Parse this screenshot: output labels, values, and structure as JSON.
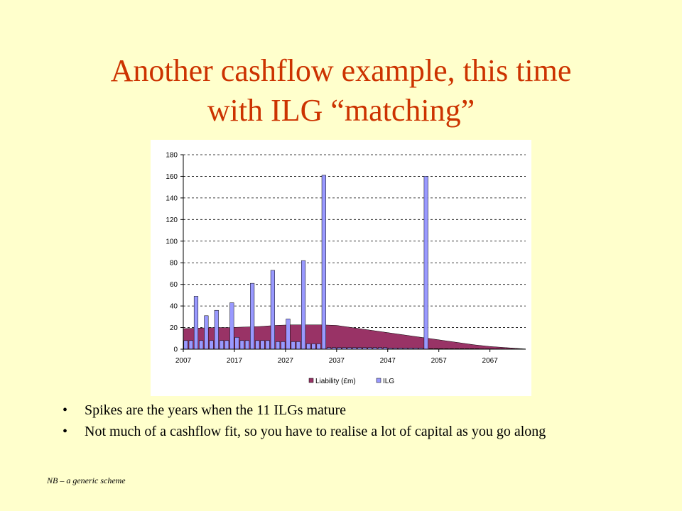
{
  "slide": {
    "title_line1": "Another cashflow example, this time",
    "title_line2": "with ILG “matching”",
    "bullets": [
      "Spikes are the years when the 11 ILGs mature",
      "Not much of a cashflow fit, so you have to realise a lot of capital as you go along"
    ],
    "footnote": "NB – a generic scheme"
  },
  "chart_data": {
    "type": "bar",
    "title": "",
    "xlabel": "",
    "ylabel": "",
    "ylim": [
      0,
      180
    ],
    "yticks": [
      0,
      20,
      40,
      60,
      80,
      100,
      120,
      140,
      160,
      180
    ],
    "x_tick_labels": [
      "2007",
      "2017",
      "2027",
      "2037",
      "2047",
      "2057",
      "2067"
    ],
    "x_range": [
      2007,
      2074
    ],
    "grid": true,
    "legend_position": "bottom",
    "colors": {
      "Liability (£m)": "#993366",
      "ILG": "#9999ff"
    },
    "series": [
      {
        "name": "Liability (£m)",
        "type": "area",
        "x": [
          2007,
          2010,
          2013,
          2016,
          2019,
          2022,
          2025,
          2028,
          2031,
          2034,
          2037,
          2040,
          2043,
          2046,
          2049,
          2052,
          2055,
          2058,
          2061,
          2064,
          2067,
          2070,
          2073,
          2074
        ],
        "values": [
          19,
          19.5,
          20,
          20,
          20.5,
          21,
          22,
          22.5,
          22.5,
          22.5,
          22,
          20,
          18,
          16,
          14,
          12,
          10,
          8,
          6,
          4,
          2.5,
          1.5,
          0.5,
          0
        ]
      },
      {
        "name": "ILG",
        "type": "bar",
        "x": [
          2007,
          2008,
          2009,
          2010,
          2011,
          2012,
          2013,
          2014,
          2015,
          2016,
          2017,
          2018,
          2019,
          2020,
          2021,
          2022,
          2023,
          2024,
          2025,
          2026,
          2027,
          2028,
          2029,
          2030,
          2031,
          2032,
          2033,
          2034,
          2035,
          2036,
          2037,
          2038,
          2039,
          2040,
          2041,
          2042,
          2043,
          2044,
          2045,
          2046,
          2047,
          2048,
          2049,
          2050,
          2051,
          2052,
          2053,
          2054,
          2055,
          2056,
          2057,
          2058,
          2059,
          2060,
          2061,
          2062,
          2063,
          2064,
          2065,
          2066,
          2067,
          2068,
          2069,
          2070,
          2071,
          2072,
          2073
        ],
        "values": [
          8,
          8,
          49,
          8,
          31,
          8,
          36,
          8,
          8,
          43,
          11,
          8,
          8,
          61,
          8,
          8,
          8,
          73,
          7,
          7,
          28,
          7,
          7,
          82,
          5,
          5,
          5,
          161,
          1.5,
          1.5,
          1.5,
          1.5,
          1.5,
          1.5,
          1.5,
          1.5,
          1.5,
          1.5,
          1.5,
          1.5,
          1,
          1,
          1,
          1,
          1,
          1,
          1,
          160,
          0.5,
          0.5,
          0.5,
          0.5,
          0.5,
          0.5,
          0.5,
          0.5,
          0.5,
          0.5,
          0.3,
          0.3,
          0.3,
          0.3,
          0.3,
          0.3,
          0.3,
          0.3,
          0.3
        ]
      }
    ]
  }
}
